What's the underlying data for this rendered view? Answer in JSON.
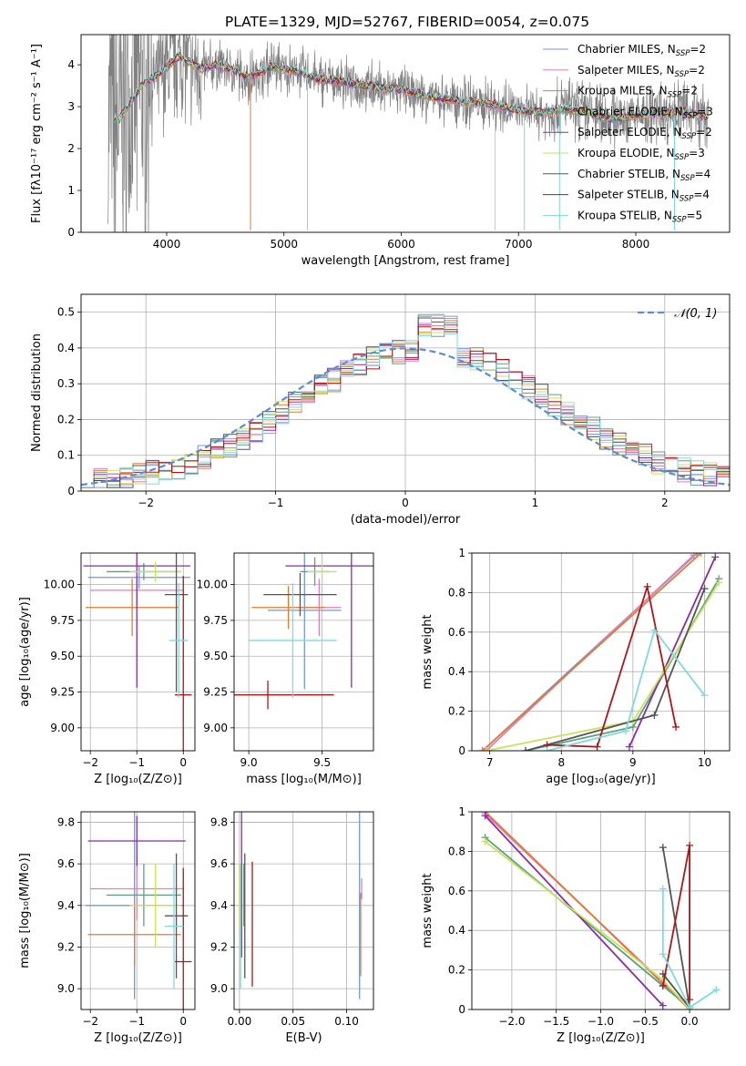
{
  "figure_title": "PLATE=1329, MJD=52767, FIBERID=0054, z=0.075",
  "colors": {
    "chabrier_miles": "#6f9ae0",
    "salpeter_miles": "#e07fbf",
    "kroupa_miles": "#e57a2e",
    "chabrier_elodie": "#5aa37d",
    "salpeter_elodie": "#8e2aa8",
    "kroupa_elodie": "#c8e25b",
    "chabrier_stelib": "#555555",
    "salpeter_stelib": "#b01515",
    "kroupa_stelib": "#7fd9dd",
    "data": "#808080",
    "normal": "#5b8bd9"
  },
  "chart_data": [
    {
      "id": "spectrum",
      "type": "line",
      "title": "PLATE=1329, MJD=52767, FIBERID=0054, z=0.075",
      "xlabel": "wavelength [Angstrom, rest frame]",
      "ylabel": "Flux [fλ10⁻¹⁷ erg cm⁻² s⁻¹ A⁻¹]",
      "xlim": [
        3270,
        8800
      ],
      "ylim": [
        0,
        4.72
      ],
      "xticks": [
        4000,
        5000,
        6000,
        7000,
        8000
      ],
      "yticks": [
        0,
        1,
        2,
        3,
        4
      ],
      "grid": false,
      "legend_position": "right",
      "continuum": {
        "x": [
          3500,
          3600,
          3700,
          3800,
          3900,
          4000,
          4100,
          4200,
          4300,
          4400,
          4500,
          4700,
          4900,
          5100,
          5300,
          5500,
          5700,
          6000,
          6300,
          6600,
          6800,
          7000,
          7200,
          7400,
          7600,
          7800,
          8000,
          8200,
          8400,
          8600
        ],
        "y": [
          2.8,
          2.7,
          3.15,
          3.55,
          3.7,
          3.95,
          4.2,
          4.05,
          3.9,
          4.0,
          3.95,
          3.7,
          3.95,
          3.85,
          3.65,
          3.6,
          3.5,
          3.4,
          3.2,
          3.1,
          3.05,
          2.9,
          2.85,
          2.95,
          2.85,
          2.7,
          2.8,
          2.85,
          2.9,
          2.75
        ]
      },
      "legend": [
        {
          "label": "Chabrier MILES, N",
          "sub": "SSP",
          "eq": "=2",
          "color_key": "chabrier_miles"
        },
        {
          "label": "Salpeter MILES, N",
          "sub": "SSP",
          "eq": "=2",
          "color_key": "salpeter_miles"
        },
        {
          "label": "Kroupa MILES, N",
          "sub": "SSP",
          "eq": "=2",
          "color_key": "kroupa_miles"
        },
        {
          "label": "Chabrier ELODIE, N",
          "sub": "SSP",
          "eq": "=3",
          "color_key": "chabrier_elodie"
        },
        {
          "label": "Salpeter ELODIE, N",
          "sub": "SSP",
          "eq": "=2",
          "color_key": "salpeter_elodie"
        },
        {
          "label": "Kroupa ELODIE, N",
          "sub": "SSP",
          "eq": "=3",
          "color_key": "kroupa_elodie"
        },
        {
          "label": "Chabrier STELIB, N",
          "sub": "SSP",
          "eq": "=4",
          "color_key": "chabrier_stelib"
        },
        {
          "label": "Salpeter STELIB, N",
          "sub": "SSP",
          "eq": "=4",
          "color_key": "salpeter_stelib"
        },
        {
          "label": "Kroupa STELIB, N",
          "sub": "SSP",
          "eq": "=5",
          "color_key": "kroupa_stelib"
        }
      ]
    },
    {
      "id": "residuals",
      "type": "line",
      "xlabel": "(data-model)/error",
      "ylabel": "Normed distribution",
      "xlim": [
        -2.5,
        2.5
      ],
      "ylim": [
        0,
        0.55
      ],
      "xticks": [
        -2,
        -1,
        0,
        1,
        2
      ],
      "yticks": [
        0.0,
        0.1,
        0.2,
        0.3,
        0.4,
        0.5
      ],
      "grid": true,
      "legend_position": "top-right",
      "normal_label": "𝒩(0, 1)",
      "bin_width": 0.1,
      "bin_edges_start": -2.5,
      "series_heights_base": [
        0.016,
        0.018,
        0.021,
        0.027,
        0.032,
        0.038,
        0.046,
        0.056,
        0.066,
        0.078,
        0.092,
        0.108,
        0.122,
        0.135,
        0.145,
        0.158,
        0.17,
        0.185,
        0.205,
        0.228,
        0.25,
        0.268,
        0.282,
        0.3,
        0.32,
        0.34,
        0.352,
        0.36,
        0.36,
        0.365,
        0.37,
        0.382,
        0.395,
        0.412,
        0.43,
        0.44,
        0.46,
        0.47,
        0.485,
        0.44,
        0.38,
        0.36,
        0.345,
        0.33,
        0.315,
        0.295,
        0.28,
        0.27,
        0.255,
        0.24,
        0.22,
        0.2,
        0.18,
        0.165,
        0.15,
        0.135,
        0.12,
        0.105,
        0.092,
        0.082,
        0.072,
        0.066,
        0.06,
        0.055,
        0.05,
        0.045,
        0.042,
        0.04,
        0.038,
        0.036,
        0.034,
        0.032,
        0.03,
        0.028,
        0.028,
        0.027,
        0.026,
        0.025,
        0.025,
        0.024,
        0.024,
        0.023,
        0.023,
        0.022,
        0.022,
        0.021,
        0.021,
        0.02,
        0.02,
        0.02,
        0.02,
        0.019,
        0.019,
        0.019,
        0.018,
        0.018,
        0.018,
        0.018,
        0.017,
        0.017
      ]
    },
    {
      "id": "age_vs_Z",
      "type": "scatter",
      "xlabel": "Z [log₁₀(Z/Z⊙)]",
      "ylabel": "age  [log₁₀(age/yr)]",
      "xlim": [
        -2.2,
        0.25
      ],
      "ylim": [
        8.84,
        10.22
      ],
      "xticks": [
        -2,
        -1,
        0
      ],
      "yticks": [
        9.0,
        9.25,
        9.5,
        9.75,
        10.0
      ],
      "ytick_labels": [
        "9.00",
        "9.25",
        "9.50",
        "9.75",
        "10.00"
      ],
      "grid": true,
      "points": [
        {
          "c": "chabrier_miles",
          "x": -0.95,
          "xerr": 1.1,
          "y": 10.05,
          "yerr": 0.08
        },
        {
          "c": "salpeter_miles",
          "x": -1.0,
          "xerr": 1.0,
          "y": 9.96,
          "yerr": 0.1
        },
        {
          "c": "kroupa_miles",
          "x": -1.1,
          "xerr": 1.0,
          "y": 9.84,
          "yerr": 0.2
        },
        {
          "c": "chabrier_elodie",
          "x": -0.85,
          "xerr": 0.8,
          "y": 10.09,
          "yerr": 0.06
        },
        {
          "c": "salpeter_elodie",
          "x": -1.0,
          "xerr": 1.15,
          "y": 10.13,
          "yerr": 0.85
        },
        {
          "c": "kroupa_elodie",
          "x": -0.6,
          "xerr": 0.55,
          "y": 10.09,
          "yerr": 0.07
        },
        {
          "c": "chabrier_stelib",
          "x": -0.15,
          "xerr": 0.25,
          "y": 9.93,
          "yerr": 0.68
        },
        {
          "c": "salpeter_stelib",
          "x": 0.0,
          "xerr": 0.18,
          "y": 9.23,
          "yerr": 0.83
        },
        {
          "c": "kroupa_stelib",
          "x": -0.1,
          "xerr": 0.2,
          "y": 9.61,
          "yerr": 0.4
        }
      ]
    },
    {
      "id": "age_vs_mass",
      "type": "scatter",
      "xlabel": "mass [log₁₀(M/M⊙)]",
      "ylabel": "",
      "xlim": [
        8.9,
        9.85
      ],
      "ylim": [
        8.84,
        10.22
      ],
      "xticks": [
        9.0,
        9.5
      ],
      "xtick_labels": [
        "9.0",
        "9.5"
      ],
      "yticks": [
        9.0,
        9.25,
        9.5,
        9.75,
        10.0
      ],
      "ytick_labels": [
        "9.00",
        "9.25",
        "9.50",
        "9.75",
        "10.00"
      ],
      "grid": true,
      "points": [
        {
          "c": "chabrier_miles",
          "x": 9.38,
          "xerr": 0.25,
          "y": 9.82,
          "yerr": 0.55
        },
        {
          "c": "salpeter_miles",
          "x": 9.48,
          "xerr": 0.15,
          "y": 9.84,
          "yerr": 0.2
        },
        {
          "c": "kroupa_miles",
          "x": 9.27,
          "xerr": 0.25,
          "y": 9.84,
          "yerr": 0.15
        },
        {
          "c": "chabrier_elodie",
          "x": 9.45,
          "xerr": 0.1,
          "y": 10.09,
          "yerr": 0.1
        },
        {
          "c": "salpeter_elodie",
          "x": 9.7,
          "xerr": 0.45,
          "y": 10.13,
          "yerr": 0.85
        },
        {
          "c": "kroupa_elodie",
          "x": 9.5,
          "xerr": 0.1,
          "y": 10.09,
          "yerr": 0.09
        },
        {
          "c": "chabrier_stelib",
          "x": 9.35,
          "xerr": 0.25,
          "y": 9.93,
          "yerr": 0.15
        },
        {
          "c": "salpeter_stelib",
          "x": 9.13,
          "xerr": 0.45,
          "y": 9.23,
          "yerr": 0.1
        },
        {
          "c": "kroupa_stelib",
          "x": 9.3,
          "xerr": 0.3,
          "y": 9.61,
          "yerr": 0.4
        }
      ]
    },
    {
      "id": "weights_vs_age",
      "type": "line",
      "xlabel": "age  [log₁₀(age/yr)]",
      "ylabel": "mass weight",
      "xlim": [
        6.75,
        10.35
      ],
      "ylim": [
        0,
        1.0
      ],
      "xticks": [
        7,
        8,
        9,
        10
      ],
      "yticks": [
        0.0,
        0.2,
        0.4,
        0.6,
        0.8,
        1.0
      ],
      "grid": true,
      "series": [
        {
          "c": "chabrier_miles",
          "x": [
            6.9,
            9.9
          ],
          "y": [
            0.0,
            1.0
          ]
        },
        {
          "c": "salpeter_miles",
          "x": [
            6.95,
            9.85
          ],
          "y": [
            0.0,
            0.99
          ]
        },
        {
          "c": "kroupa_miles",
          "x": [
            6.9,
            9.95
          ],
          "y": [
            0.0,
            1.0
          ]
        },
        {
          "c": "chabrier_elodie",
          "x": [
            7.5,
            9.0,
            10.2
          ],
          "y": [
            0.0,
            0.12,
            0.87
          ]
        },
        {
          "c": "salpeter_elodie",
          "x": [
            8.95,
            10.15
          ],
          "y": [
            0.02,
            0.98
          ]
        },
        {
          "c": "kroupa_elodie",
          "x": [
            6.95,
            9.0,
            10.2
          ],
          "y": [
            0.0,
            0.15,
            0.85
          ]
        },
        {
          "c": "chabrier_stelib",
          "x": [
            7.5,
            9.3,
            10.0
          ],
          "y": [
            0.0,
            0.18,
            0.82
          ]
        },
        {
          "c": "salpeter_stelib",
          "x": [
            7.8,
            8.5,
            9.2,
            9.6
          ],
          "y": [
            0.03,
            0.02,
            0.83,
            0.12
          ]
        },
        {
          "c": "kroupa_stelib",
          "x": [
            7.8,
            8.9,
            9.3,
            10.0
          ],
          "y": [
            0.0,
            0.1,
            0.61,
            0.28
          ]
        }
      ]
    },
    {
      "id": "mass_vs_Z",
      "type": "scatter",
      "xlabel": "Z [log₁₀(Z/Z⊙)]",
      "ylabel": "mass [log₁₀(M/M⊙)]",
      "xlim": [
        -2.2,
        0.25
      ],
      "ylim": [
        8.9,
        9.85
      ],
      "xticks": [
        -2,
        -1,
        0
      ],
      "yticks": [
        9.0,
        9.2,
        9.4,
        9.6,
        9.8
      ],
      "ytick_labels": [
        "9.0",
        "9.2",
        "9.4",
        "9.6",
        "9.8"
      ],
      "grid": true,
      "points": [
        {
          "c": "chabrier_miles",
          "x": -1.05,
          "xerr": 1.05,
          "y": 9.4,
          "yerr": 0.45
        },
        {
          "c": "salpeter_miles",
          "x": -1.0,
          "xerr": 1.0,
          "y": 9.48,
          "yerr": 0.15
        },
        {
          "c": "kroupa_miles",
          "x": -1.05,
          "xerr": 1.0,
          "y": 9.26,
          "yerr": 0.15
        },
        {
          "c": "chabrier_elodie",
          "x": -0.85,
          "xerr": 0.8,
          "y": 9.45,
          "yerr": 0.15
        },
        {
          "c": "salpeter_elodie",
          "x": -1.0,
          "xerr": 1.05,
          "y": 9.71,
          "yerr": 0.12
        },
        {
          "c": "kroupa_elodie",
          "x": -0.6,
          "xerr": 0.55,
          "y": 9.4,
          "yerr": 0.2
        },
        {
          "c": "chabrier_stelib",
          "x": -0.15,
          "xerr": 0.25,
          "y": 9.35,
          "yerr": 0.3
        },
        {
          "c": "salpeter_stelib",
          "x": 0.0,
          "xerr": 0.18,
          "y": 9.13,
          "yerr": 0.45
        },
        {
          "c": "kroupa_stelib",
          "x": -0.2,
          "xerr": 0.2,
          "y": 9.3,
          "yerr": 0.3
        }
      ]
    },
    {
      "id": "mass_vs_ebv",
      "type": "scatter",
      "xlabel": "E(B-V)",
      "ylabel": "",
      "xlim": [
        -0.005,
        0.125
      ],
      "ylim": [
        8.9,
        9.85
      ],
      "xticks": [
        0.0,
        0.05,
        0.1
      ],
      "xtick_labels": [
        "0.00",
        "0.05",
        "0.10"
      ],
      "yticks": [
        9.0,
        9.2,
        9.4,
        9.6,
        9.8
      ],
      "ytick_labels": [
        "9.0",
        "9.2",
        "9.4",
        "9.6",
        "9.8"
      ],
      "grid": true,
      "points": [
        {
          "c": "chabrier_miles",
          "x": 0.112,
          "y": 9.4,
          "yerr": 0.45
        },
        {
          "c": "salpeter_miles",
          "x": 0.114,
          "y": 9.48,
          "yerr": 0.05
        },
        {
          "c": "kroupa_miles",
          "x": 0.113,
          "y": 9.26,
          "yerr": 0.2
        },
        {
          "c": "chabrier_elodie",
          "x": 0.004,
          "y": 9.45,
          "yerr": 0.15
        },
        {
          "c": "salpeter_elodie",
          "x": 0.002,
          "y": 9.5,
          "yerr": 0.35
        },
        {
          "c": "kroupa_elodie",
          "x": 0.0,
          "y": 9.45,
          "yerr": 0.15
        },
        {
          "c": "chabrier_stelib",
          "x": 0.005,
          "y": 9.35,
          "yerr": 0.3
        },
        {
          "c": "salpeter_stelib",
          "x": 0.012,
          "y": 9.31,
          "yerr": 0.3
        },
        {
          "c": "kroupa_stelib",
          "x": 0.001,
          "y": 9.3,
          "yerr": 0.3
        }
      ]
    },
    {
      "id": "weights_vs_Z",
      "type": "line",
      "xlabel": "Z [log₁₀(Z/Z⊙)]",
      "ylabel": "mass weight",
      "xlim": [
        -2.45,
        0.45
      ],
      "ylim": [
        0,
        1.0
      ],
      "xticks": [
        -2.0,
        -1.5,
        -1.0,
        -0.5,
        0.0
      ],
      "xtick_labels": [
        "−2.0",
        "−1.5",
        "−1.0",
        "−0.5",
        "0.0"
      ],
      "yticks": [
        0.0,
        0.2,
        0.4,
        0.6,
        0.8,
        1.0
      ],
      "grid": true,
      "series": [
        {
          "c": "chabrier_miles",
          "x": [
            -2.3,
            0.0
          ],
          "y": [
            1.0,
            0.0
          ]
        },
        {
          "c": "salpeter_miles",
          "x": [
            -2.3,
            0.0
          ],
          "y": [
            0.99,
            0.01
          ]
        },
        {
          "c": "kroupa_miles",
          "x": [
            -2.3,
            0.0
          ],
          "y": [
            1.0,
            0.0
          ]
        },
        {
          "c": "chabrier_elodie",
          "x": [
            -2.3,
            -0.3,
            0.0
          ],
          "y": [
            0.87,
            0.12,
            0.01
          ]
        },
        {
          "c": "salpeter_elodie",
          "x": [
            -2.3,
            -0.3
          ],
          "y": [
            0.98,
            0.02
          ]
        },
        {
          "c": "kroupa_elodie",
          "x": [
            -2.3,
            -0.3,
            0.0
          ],
          "y": [
            0.85,
            0.15,
            0.0
          ]
        },
        {
          "c": "chabrier_stelib",
          "x": [
            -0.3,
            0.0,
            -0.3
          ],
          "y": [
            0.82,
            0.01,
            0.18
          ]
        },
        {
          "c": "salpeter_stelib",
          "x": [
            -0.3,
            0.0,
            0.0
          ],
          "y": [
            0.12,
            0.83,
            0.05
          ]
        },
        {
          "c": "kroupa_stelib",
          "x": [
            -0.3,
            -0.3,
            0.0,
            0.3
          ],
          "y": [
            0.61,
            0.28,
            0.01,
            0.1
          ]
        }
      ]
    }
  ]
}
